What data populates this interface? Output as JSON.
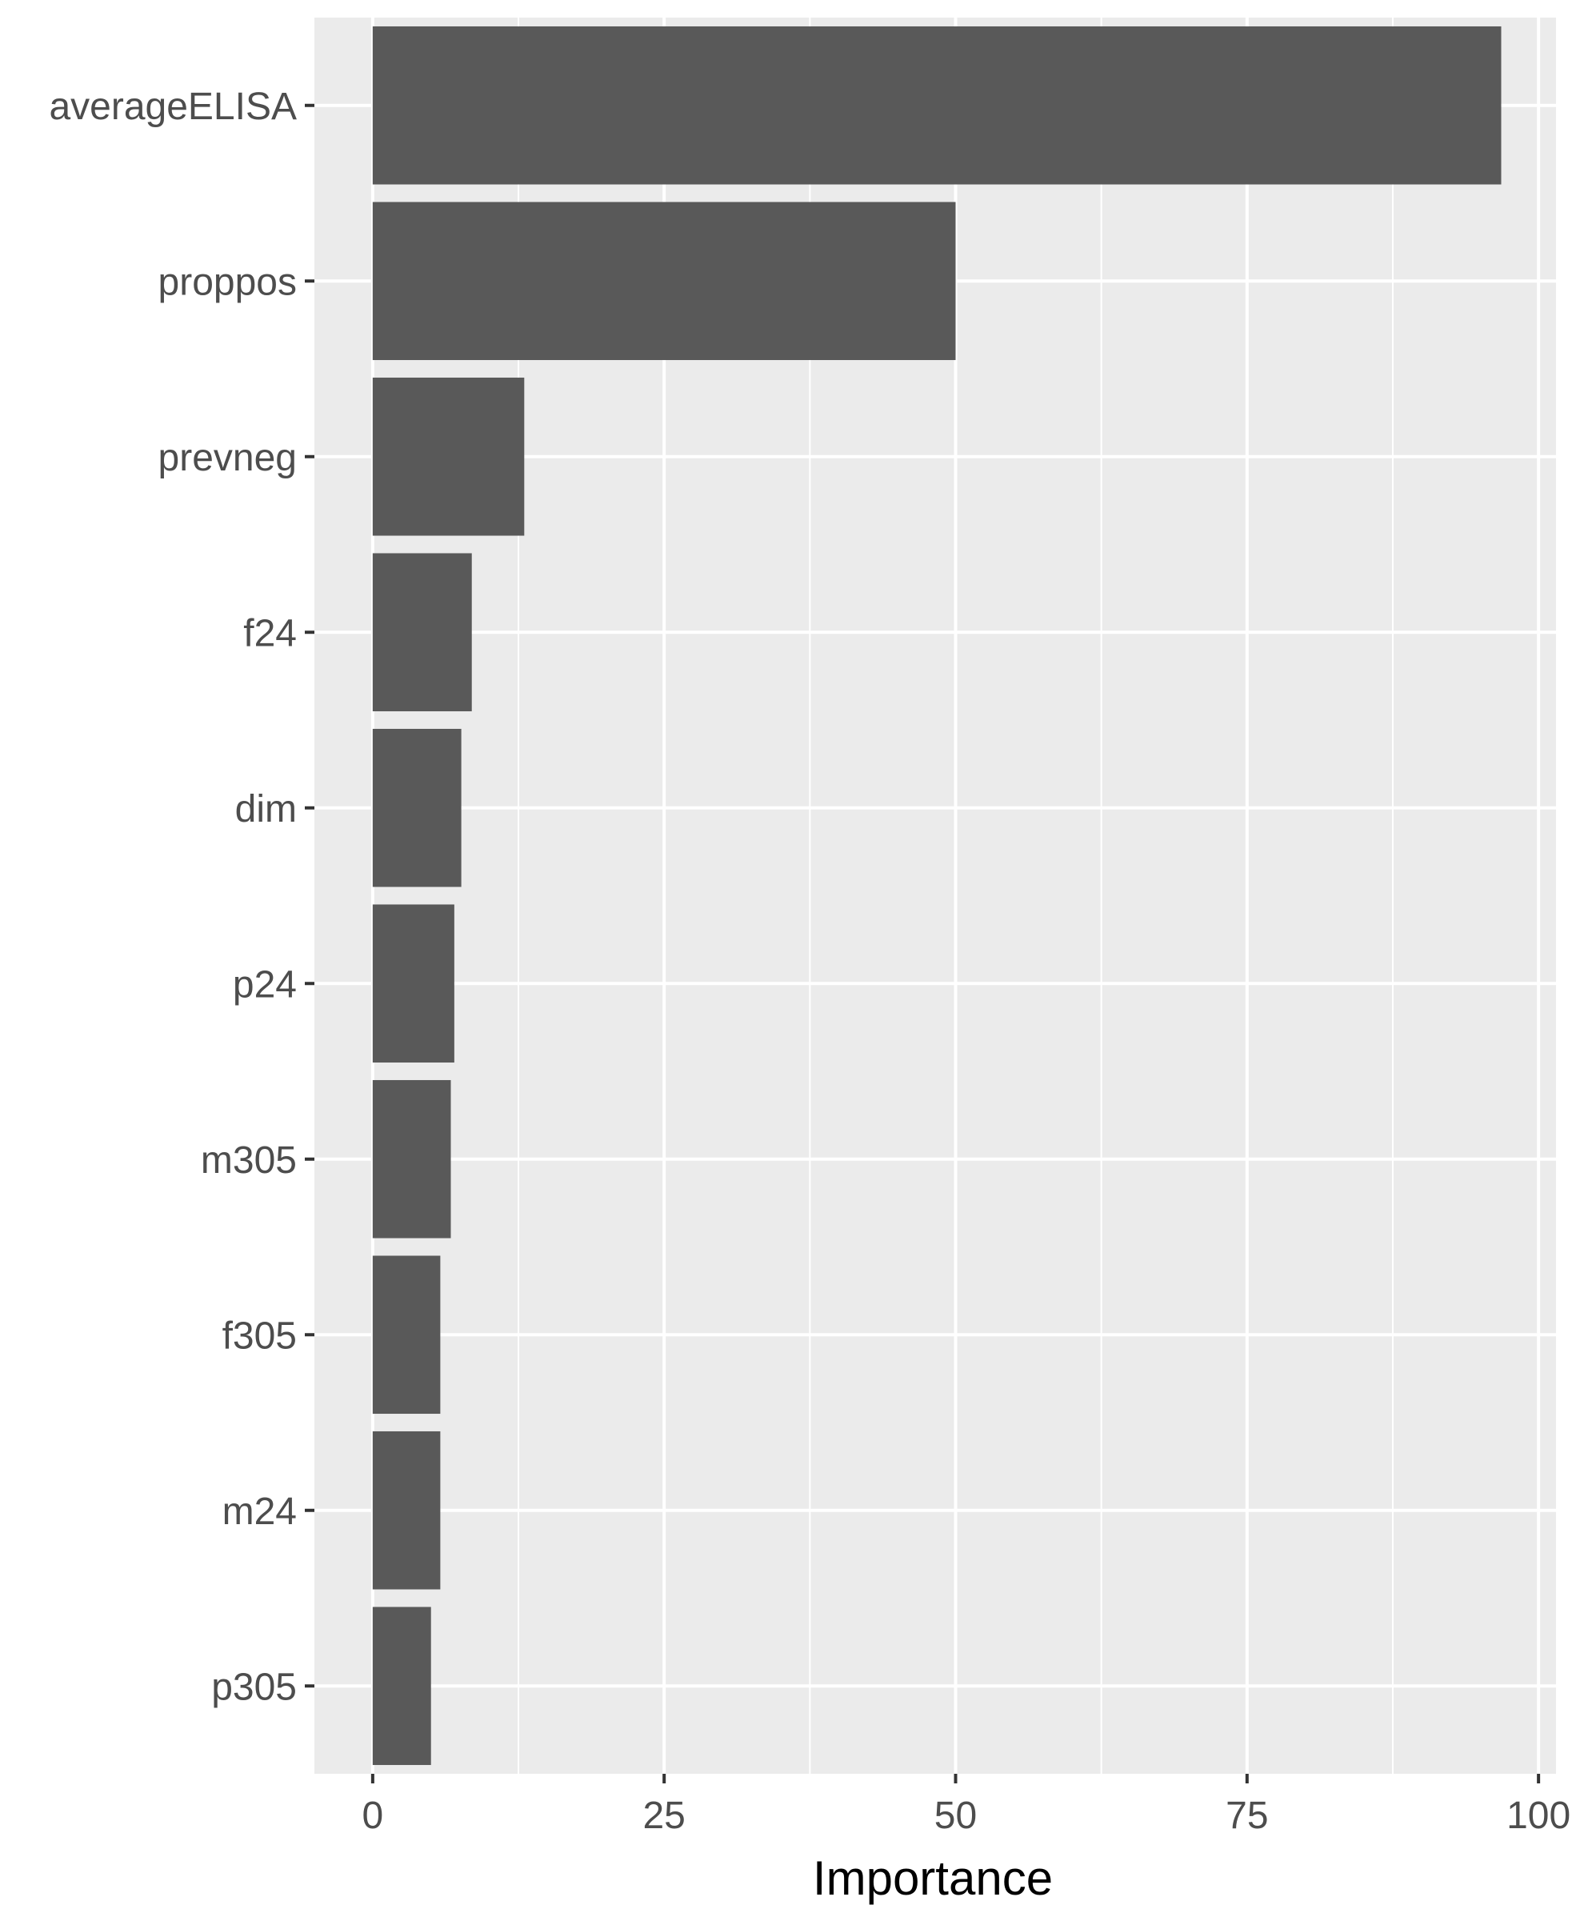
{
  "chart_data": {
    "type": "bar",
    "orientation": "horizontal",
    "categories": [
      "averageELISA",
      "proppos",
      "prevneg",
      "f24",
      "dim",
      "p24",
      "m305",
      "f305",
      "m24",
      "p305"
    ],
    "values": [
      96.8,
      50.0,
      13.0,
      8.5,
      7.6,
      7.0,
      6.7,
      5.8,
      5.8,
      5.0
    ],
    "xlabel": "Importance",
    "ylabel": "",
    "title": "",
    "xlim": [
      -5,
      101.5
    ],
    "xticks": [
      0,
      25,
      50,
      75,
      100
    ],
    "grid": true,
    "colors": {
      "panel_background": "#ebebeb",
      "grid_major": "#ffffff",
      "bar_fill": "#595959",
      "tick_text": "#4d4d4d",
      "axis_title": "#000000"
    }
  }
}
